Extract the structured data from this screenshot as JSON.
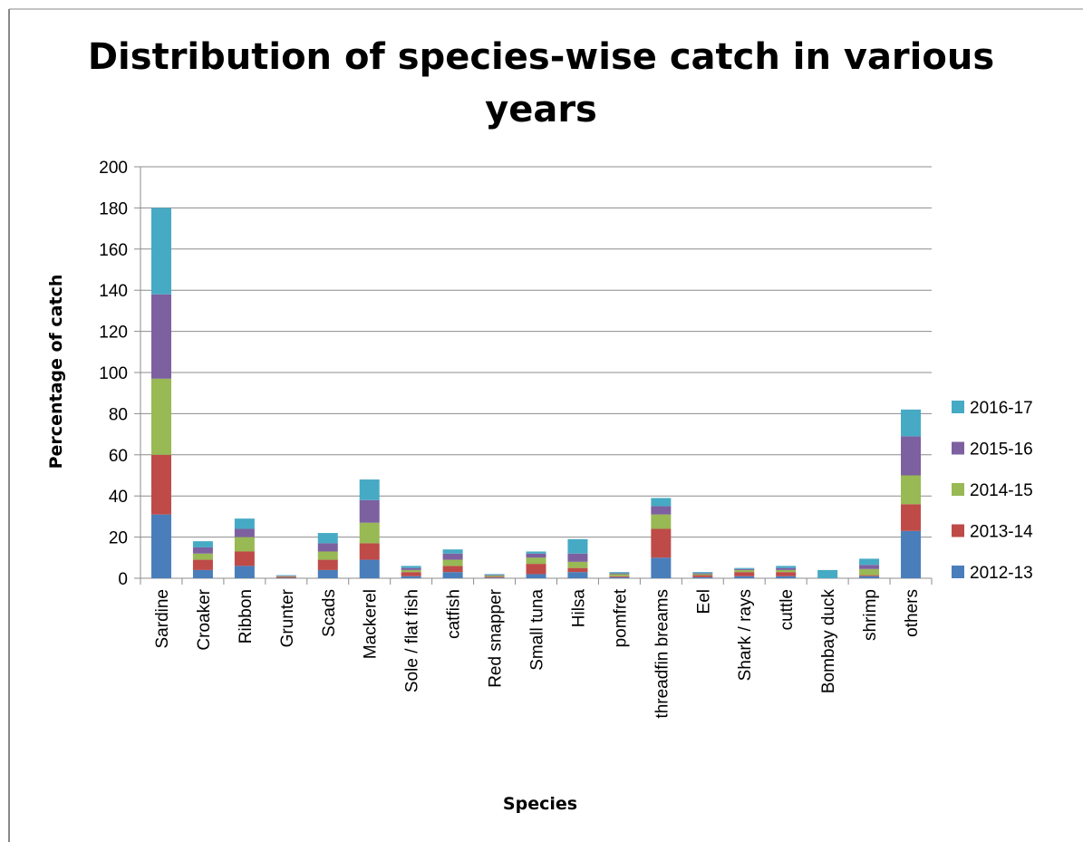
{
  "chart_data": {
    "type": "bar",
    "stacked": true,
    "title": "Distribution of species-wise catch in various years",
    "xlabel": "Species",
    "ylabel": "Percentage of catch",
    "ylim": [
      0,
      200
    ],
    "yticks": [
      0,
      20,
      40,
      60,
      80,
      100,
      120,
      140,
      160,
      180,
      200
    ],
    "grid": true,
    "legend_position": "right",
    "categories": [
      "Sardine",
      "Croaker",
      "Ribbon",
      "Grunter",
      "Scads",
      "Mackerel",
      "Sole / flat fish",
      "catfish",
      "Red snapper",
      "Small tuna",
      "Hilsa",
      "pomfret",
      "threadfin breams",
      "Eel",
      "Shark / rays",
      "cuttle",
      "Bombay duck",
      "shrimp",
      "others"
    ],
    "series": [
      {
        "name": "2012-13",
        "color": "#4a7ebb",
        "values": [
          31,
          4,
          6,
          0.2,
          4,
          9,
          1,
          3,
          0.3,
          2,
          3,
          0.5,
          10,
          0.5,
          1,
          1,
          0,
          1,
          23
        ]
      },
      {
        "name": "2013-14",
        "color": "#be4b48",
        "values": [
          29,
          5,
          7,
          0.5,
          5,
          8,
          2,
          3,
          0.5,
          5,
          2,
          0.5,
          14,
          1,
          2,
          2,
          0,
          0.5,
          13
        ]
      },
      {
        "name": "2014-15",
        "color": "#98b954",
        "values": [
          37,
          3,
          7,
          0.3,
          4,
          10,
          1,
          3,
          0.5,
          3,
          3,
          1,
          7,
          0.5,
          1,
          1,
          0,
          3,
          14
        ]
      },
      {
        "name": "2015-16",
        "color": "#7d60a0",
        "values": [
          41,
          3,
          4,
          0.2,
          4,
          11,
          1,
          3,
          0.3,
          2,
          4,
          0.5,
          4,
          0.5,
          0.5,
          1,
          0,
          2,
          19
        ]
      },
      {
        "name": "2016-17",
        "color": "#46aac5",
        "values": [
          42,
          3,
          5,
          0.3,
          5,
          10,
          1,
          2,
          0.4,
          1,
          7,
          0.5,
          4,
          0.5,
          0.5,
          1,
          4,
          3,
          13
        ]
      }
    ]
  }
}
